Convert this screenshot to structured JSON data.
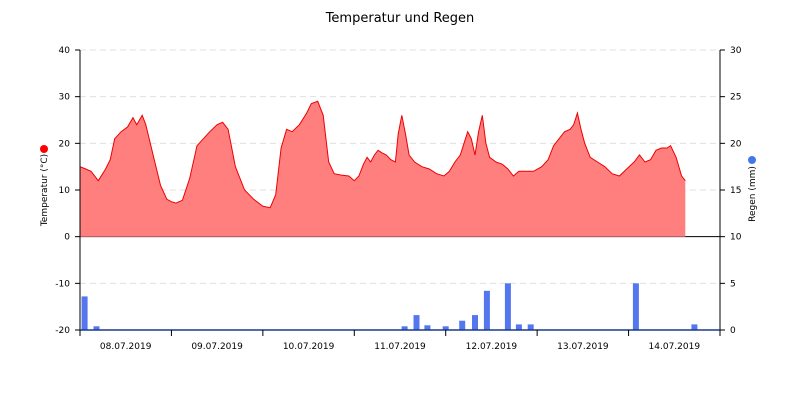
{
  "chart_data": {
    "type": "area",
    "title": "Temperatur und Regen",
    "x_ticks": [
      "08.07.2019",
      "09.07.2019",
      "10.07.2019",
      "11.07.2019",
      "12.07.2019",
      "13.07.2019",
      "14.07.2019"
    ],
    "x_range_days": [
      0,
      7
    ],
    "y_left": {
      "label": "Temperatur (°C)",
      "ticks": [
        40,
        30,
        20,
        10,
        0,
        -10,
        -20
      ],
      "ylim": [
        -20,
        40
      ],
      "marker_color": "#ff0000"
    },
    "y_right": {
      "label": "Regen (mm)",
      "ticks": [
        30,
        25,
        20,
        15,
        10,
        5,
        0
      ],
      "ylim": [
        0,
        30
      ],
      "marker_color": "#4477ee"
    },
    "grid": true,
    "series": [
      {
        "name": "Temperatur",
        "kind": "area",
        "color": "#ee0000",
        "fill": "#ff7f7f",
        "points": [
          [
            0.0,
            15.0
          ],
          [
            0.05,
            14.6
          ],
          [
            0.12,
            14.0
          ],
          [
            0.2,
            12.0
          ],
          [
            0.28,
            14.5
          ],
          [
            0.33,
            16.5
          ],
          [
            0.38,
            21.0
          ],
          [
            0.45,
            22.5
          ],
          [
            0.52,
            23.5
          ],
          [
            0.58,
            25.5
          ],
          [
            0.62,
            24.0
          ],
          [
            0.68,
            26.0
          ],
          [
            0.72,
            24.0
          ],
          [
            0.8,
            17.5
          ],
          [
            0.88,
            11.0
          ],
          [
            0.95,
            8.0
          ],
          [
            1.0,
            7.5
          ],
          [
            1.05,
            7.2
          ],
          [
            1.12,
            7.8
          ],
          [
            1.2,
            12.5
          ],
          [
            1.28,
            19.5
          ],
          [
            1.35,
            21.0
          ],
          [
            1.42,
            22.5
          ],
          [
            1.5,
            24.0
          ],
          [
            1.56,
            24.5
          ],
          [
            1.62,
            23.0
          ],
          [
            1.7,
            15.0
          ],
          [
            1.8,
            10.0
          ],
          [
            1.9,
            8.0
          ],
          [
            2.0,
            6.5
          ],
          [
            2.08,
            6.2
          ],
          [
            2.14,
            9.0
          ],
          [
            2.2,
            19.0
          ],
          [
            2.26,
            23.0
          ],
          [
            2.32,
            22.5
          ],
          [
            2.4,
            24.0
          ],
          [
            2.48,
            26.5
          ],
          [
            2.53,
            28.5
          ],
          [
            2.6,
            29.0
          ],
          [
            2.66,
            26.0
          ],
          [
            2.72,
            16.0
          ],
          [
            2.78,
            13.5
          ],
          [
            2.86,
            13.2
          ],
          [
            2.94,
            13.0
          ],
          [
            3.0,
            12.0
          ],
          [
            3.05,
            13.0
          ],
          [
            3.1,
            15.5
          ],
          [
            3.14,
            17.0
          ],
          [
            3.18,
            16.0
          ],
          [
            3.22,
            17.5
          ],
          [
            3.26,
            18.5
          ],
          [
            3.3,
            18.0
          ],
          [
            3.35,
            17.5
          ],
          [
            3.4,
            16.5
          ],
          [
            3.45,
            16.0
          ],
          [
            3.48,
            22.0
          ],
          [
            3.52,
            26.0
          ],
          [
            3.56,
            22.0
          ],
          [
            3.6,
            17.5
          ],
          [
            3.66,
            16.0
          ],
          [
            3.74,
            15.0
          ],
          [
            3.82,
            14.5
          ],
          [
            3.9,
            13.5
          ],
          [
            3.98,
            13.0
          ],
          [
            4.04,
            14.0
          ],
          [
            4.1,
            16.0
          ],
          [
            4.16,
            17.5
          ],
          [
            4.2,
            20.0
          ],
          [
            4.24,
            22.5
          ],
          [
            4.28,
            21.0
          ],
          [
            4.32,
            17.5
          ],
          [
            4.36,
            22.5
          ],
          [
            4.4,
            26.0
          ],
          [
            4.44,
            20.0
          ],
          [
            4.48,
            17.0
          ],
          [
            4.55,
            16.0
          ],
          [
            4.62,
            15.5
          ],
          [
            4.68,
            14.5
          ],
          [
            4.74,
            13.0
          ],
          [
            4.8,
            14.0
          ],
          [
            4.88,
            14.0
          ],
          [
            4.96,
            14.0
          ],
          [
            5.05,
            15.0
          ],
          [
            5.12,
            16.5
          ],
          [
            5.18,
            19.5
          ],
          [
            5.24,
            21.0
          ],
          [
            5.3,
            22.5
          ],
          [
            5.36,
            23.0
          ],
          [
            5.4,
            24.0
          ],
          [
            5.44,
            26.5
          ],
          [
            5.48,
            23.0
          ],
          [
            5.52,
            20.0
          ],
          [
            5.58,
            17.0
          ],
          [
            5.66,
            16.0
          ],
          [
            5.74,
            15.0
          ],
          [
            5.82,
            13.5
          ],
          [
            5.9,
            13.0
          ],
          [
            5.98,
            14.5
          ],
          [
            6.06,
            16.0
          ],
          [
            6.12,
            17.5
          ],
          [
            6.18,
            16.0
          ],
          [
            6.24,
            16.5
          ],
          [
            6.3,
            18.5
          ],
          [
            6.36,
            19.0
          ],
          [
            6.42,
            19.0
          ],
          [
            6.46,
            19.5
          ],
          [
            6.52,
            17.0
          ],
          [
            6.58,
            13.0
          ],
          [
            6.62,
            12.0
          ]
        ]
      },
      {
        "name": "Regen",
        "kind": "bar",
        "axis": "right",
        "color": "#5577ee",
        "points": [
          [
            0.05,
            3.6
          ],
          [
            0.18,
            0.4
          ],
          [
            3.55,
            0.4
          ],
          [
            3.68,
            1.6
          ],
          [
            3.8,
            0.5
          ],
          [
            4.0,
            0.4
          ],
          [
            4.18,
            1.0
          ],
          [
            4.32,
            1.6
          ],
          [
            4.45,
            4.2
          ],
          [
            4.68,
            5.0
          ],
          [
            4.8,
            0.6
          ],
          [
            4.93,
            0.6
          ],
          [
            6.08,
            5.0
          ],
          [
            6.72,
            0.6
          ]
        ]
      }
    ]
  }
}
